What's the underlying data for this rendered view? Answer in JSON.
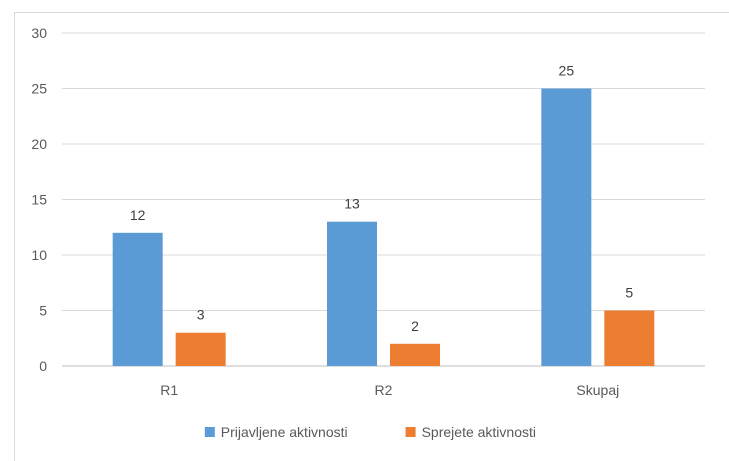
{
  "chart_data": {
    "type": "bar",
    "categories": [
      "R1",
      "R2",
      "Skupaj"
    ],
    "series": [
      {
        "name": "Prijavljene aktivnosti",
        "values": [
          12,
          13,
          25
        ],
        "color": "#5b9bd5"
      },
      {
        "name": "Sprejete aktivnosti",
        "values": [
          3,
          2,
          5
        ],
        "color": "#ed7d31"
      }
    ],
    "ylim": [
      0,
      30
    ],
    "yticks": [
      0,
      5,
      10,
      15,
      20,
      25,
      30
    ],
    "grid": true,
    "legend_position": "bottom",
    "data_labels": true
  }
}
